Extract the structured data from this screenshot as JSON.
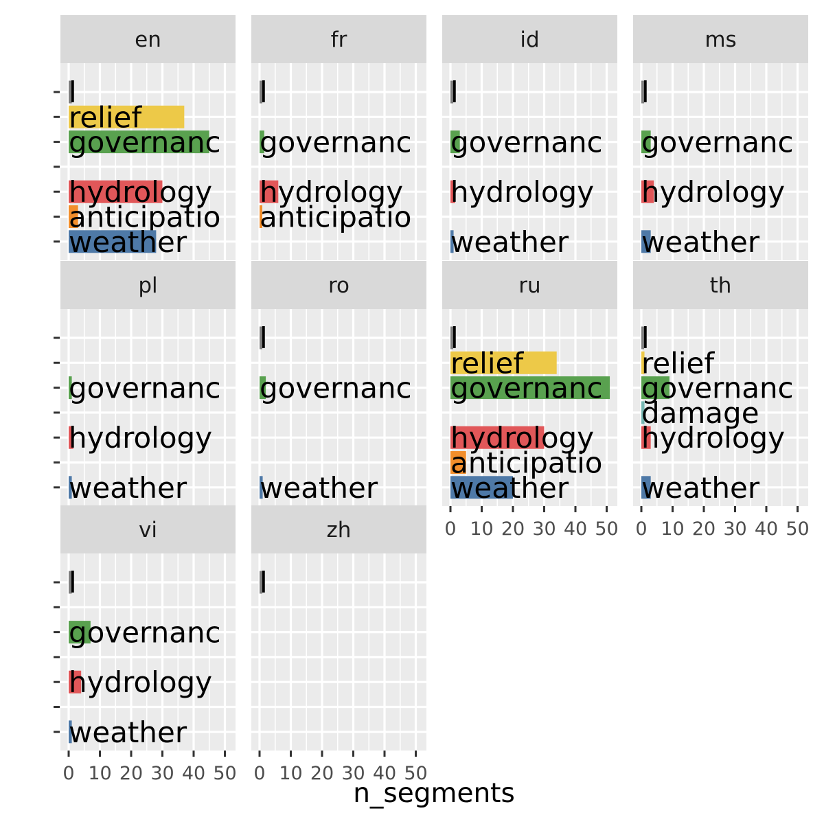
{
  "chart_data": {
    "type": "bar",
    "orientation": "horizontal",
    "facet_by": "language",
    "xlabel": "n_segments",
    "ylabel": "",
    "xlim": [
      0,
      52
    ],
    "x_ticks": [
      "0",
      "10",
      "20",
      "30",
      "40",
      "50"
    ],
    "categories": [
      "weather",
      "anticipatio",
      "hydrology",
      "damage",
      "governanc",
      "relief",
      "l"
    ],
    "category_colors": {
      "weather": "#4E79A7",
      "anticipatio": "#F28E2B",
      "hydrology": "#E15759",
      "damage": "#76B7B2",
      "governanc": "#59A14F",
      "relief": "#EDC948",
      "l": "#7F7F7F"
    },
    "grid": true,
    "legend": "none",
    "facets": [
      {
        "name": "en",
        "values": {
          "l": 1,
          "relief": 37,
          "governanc": 45,
          "hydrology": 30,
          "anticipatio": 3,
          "weather": 28
        }
      },
      {
        "name": "fr",
        "values": {
          "l": 0.5,
          "governanc": 1.5,
          "hydrology": 6,
          "anticipatio": 0.5
        }
      },
      {
        "name": "id",
        "values": {
          "l": 0.5,
          "governanc": 3,
          "hydrology": 1.5,
          "weather": 1
        }
      },
      {
        "name": "ms",
        "values": {
          "l": 0.5,
          "governanc": 3,
          "hydrology": 4,
          "weather": 3
        }
      },
      {
        "name": "pl",
        "values": {
          "governanc": 1,
          "hydrology": 1.5,
          "weather": 1
        }
      },
      {
        "name": "ro",
        "values": {
          "l": 0.5,
          "governanc": 2,
          "weather": 1
        }
      },
      {
        "name": "ru",
        "values": {
          "l": 0.5,
          "relief": 34,
          "governanc": 51,
          "hydrology": 30,
          "anticipatio": 5,
          "weather": 20
        }
      },
      {
        "name": "th",
        "values": {
          "l": 0.5,
          "relief": 1,
          "governanc": 9,
          "damage": 1,
          "hydrology": 3,
          "weather": 3
        }
      },
      {
        "name": "vi",
        "values": {
          "l": 1,
          "governanc": 7,
          "hydrology": 4,
          "weather": 1
        }
      },
      {
        "name": "zh",
        "values": {
          "l": 0.5
        }
      }
    ]
  }
}
